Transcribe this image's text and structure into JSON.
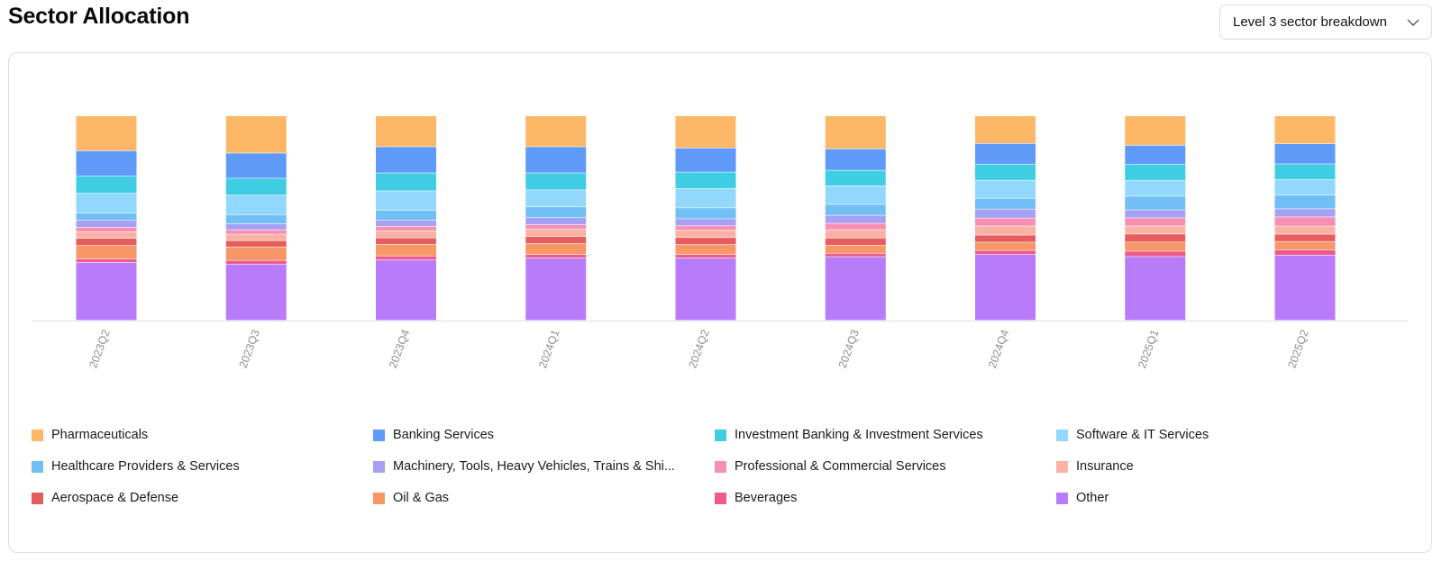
{
  "header": {
    "title": "Sector Allocation",
    "breakdown_select": "Level 3 sector breakdown"
  },
  "chart_data": {
    "type": "bar",
    "stacked": true,
    "percent_normalized": true,
    "title": "",
    "xlabel": "",
    "ylabel": "",
    "categories": [
      "2023Q2",
      "2023Q3",
      "2023Q4",
      "2024Q1",
      "2024Q2",
      "2024Q3",
      "2024Q4",
      "2025Q1",
      "2025Q2"
    ],
    "series": [
      {
        "name": "Other",
        "color": "#b87cfb",
        "values": [
          28.0,
          27.5,
          29.5,
          30.5,
          30.5,
          30.8,
          32.2,
          30.8,
          31.3
        ]
      },
      {
        "name": "Beverages",
        "color": "#ee5a8a",
        "values": [
          1.8,
          1.8,
          2.0,
          1.7,
          1.7,
          1.7,
          2.0,
          2.6,
          2.6
        ]
      },
      {
        "name": "Oil & Gas",
        "color": "#f69765",
        "values": [
          6.4,
          6.6,
          5.7,
          5.3,
          4.8,
          3.9,
          4.0,
          4.4,
          4.0
        ]
      },
      {
        "name": "Aerospace & Defense",
        "color": "#e55d5f",
        "values": [
          3.5,
          3.1,
          3.1,
          3.5,
          3.5,
          3.5,
          3.5,
          3.9,
          3.5
        ]
      },
      {
        "name": "Insurance",
        "color": "#fbb2a4",
        "values": [
          3.1,
          3.1,
          3.5,
          3.5,
          3.5,
          4.0,
          4.4,
          3.9,
          3.9
        ]
      },
      {
        "name": "Professional & Commercial Services",
        "color": "#f68fb2",
        "values": [
          2.2,
          2.2,
          2.2,
          2.2,
          2.2,
          3.1,
          3.9,
          3.9,
          4.4
        ]
      },
      {
        "name": "Machinery, Tools, Heavy Vehicles, Trains & Ships",
        "color": "#a6a0f5",
        "values": [
          3.5,
          3.0,
          3.0,
          3.5,
          3.5,
          3.9,
          4.4,
          3.9,
          3.9
        ]
      },
      {
        "name": "Healthcare Providers & Services",
        "color": "#72bff5",
        "values": [
          3.5,
          4.4,
          4.8,
          5.3,
          5.3,
          5.3,
          5.3,
          6.6,
          6.6
        ]
      },
      {
        "name": "Software & IT Services",
        "color": "#92d8fd",
        "values": [
          9.5,
          9.5,
          9.5,
          8.3,
          9.5,
          9.0,
          8.8,
          7.5,
          7.5
        ]
      },
      {
        "name": "Investment Banking & Investment Services",
        "color": "#3ecde3",
        "values": [
          8.3,
          8.3,
          8.8,
          8.3,
          8.0,
          7.5,
          7.9,
          7.9,
          7.5
        ]
      },
      {
        "name": "Banking Services",
        "color": "#5f9af8",
        "values": [
          12.3,
          12.3,
          12.8,
          12.8,
          11.8,
          10.4,
          10.1,
          9.2,
          9.7
        ]
      },
      {
        "name": "Pharmaceuticals",
        "color": "#fcb866",
        "values": [
          16.9,
          18.2,
          15.1,
          15.1,
          15.7,
          16.0,
          13.5,
          14.2,
          13.4
        ]
      }
    ]
  },
  "legend": {
    "items": [
      {
        "label": "Pharmaceuticals",
        "color": "#fcb866"
      },
      {
        "label": "Banking Services",
        "color": "#5f9af8"
      },
      {
        "label": "Investment Banking & Investment Services",
        "color": "#3ecde3"
      },
      {
        "label": "Software & IT Services",
        "color": "#92d8fd"
      },
      {
        "label": "Healthcare Providers & Services",
        "color": "#72bff5"
      },
      {
        "label": "Machinery, Tools, Heavy Vehicles, Trains & Shi...",
        "color": "#a6a0f5"
      },
      {
        "label": "Professional & Commercial Services",
        "color": "#f68fb2"
      },
      {
        "label": "Insurance",
        "color": "#fbb2a4"
      },
      {
        "label": "Aerospace & Defense",
        "color": "#e55d5f"
      },
      {
        "label": "Oil & Gas",
        "color": "#f69765"
      },
      {
        "label": "Beverages",
        "color": "#ee5a8a"
      },
      {
        "label": "Other",
        "color": "#b87cfb"
      }
    ]
  }
}
